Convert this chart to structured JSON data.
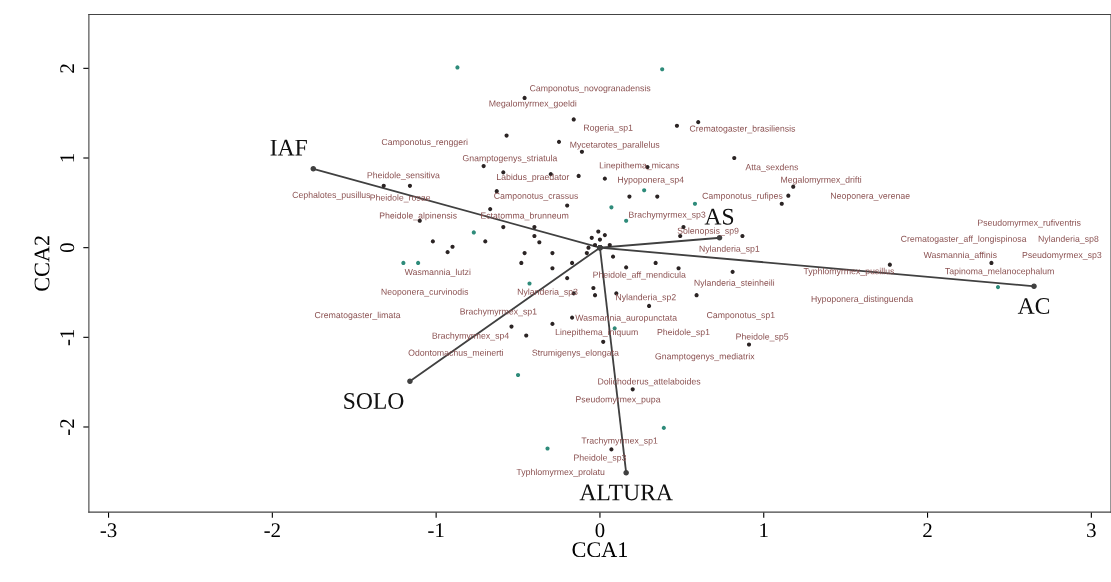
{
  "chart_data": {
    "type": "scatter",
    "xlabel": "CCA1",
    "ylabel": "CCA2",
    "xlim": [
      -3.12,
      3.12
    ],
    "ylim": [
      -2.95,
      2.6
    ],
    "xticks": [
      -3,
      -2,
      -1,
      0,
      1,
      2,
      3
    ],
    "yticks": [
      -2,
      -1,
      0,
      1,
      2
    ],
    "grid": false,
    "legend": false,
    "marker": "circle",
    "series": [
      {
        "color": "#2b2424",
        "x": [
          -0.46,
          -0.16,
          -0.57,
          -0.25,
          -0.11,
          -0.71,
          -0.59,
          -0.3,
          -0.13,
          -1.16,
          -1.32,
          -0.63,
          -0.2,
          -0.67,
          -1.1,
          -0.59,
          -0.4,
          -0.4,
          -0.7,
          -0.37,
          -1.02,
          0.6,
          0.47,
          0.82,
          0.29,
          0.03,
          0.18,
          0.35,
          1.18,
          1.15,
          1.11,
          0.51,
          0.87,
          -0.93,
          -0.9,
          -0.48,
          -0.46,
          -0.29,
          -0.08,
          -0.29,
          -0.17,
          -0.16,
          -0.2,
          -0.04,
          0.1,
          -0.17,
          -0.54,
          -0.29,
          -0.45,
          0.02,
          0.16,
          0.08,
          0.49,
          1.77,
          0.81,
          0.34,
          0.59,
          0.3,
          0.91,
          0.48,
          -0.03,
          0.2,
          0.07,
          2.39,
          0.0,
          -0.03,
          0.03,
          -0.05,
          0.06,
          -0.01,
          -0.07
        ],
        "values": [
          1.67,
          1.43,
          1.25,
          1.18,
          1.07,
          0.91,
          0.84,
          0.82,
          0.8,
          0.69,
          0.69,
          0.63,
          0.47,
          0.43,
          0.3,
          0.23,
          0.23,
          0.13,
          0.07,
          0.06,
          0.07,
          1.4,
          1.36,
          1.0,
          0.9,
          0.77,
          0.57,
          0.57,
          0.68,
          0.58,
          0.49,
          0.23,
          0.13,
          -0.05,
          0.01,
          -0.17,
          -0.06,
          -0.06,
          -0.06,
          -0.23,
          -0.17,
          -0.51,
          -0.34,
          -0.45,
          -0.51,
          -0.78,
          -0.88,
          -0.85,
          -0.98,
          -1.05,
          -0.22,
          -0.1,
          0.13,
          -0.19,
          -0.27,
          -0.17,
          -0.53,
          -0.65,
          -1.08,
          -0.23,
          -0.53,
          -1.58,
          -2.25,
          -0.17,
          0.09,
          0.03,
          0.14,
          0.11,
          0.03,
          0.18,
          0.0
        ]
      },
      {
        "color": "#2e8b7a",
        "x": [
          -0.87,
          0.38,
          -1.2,
          -1.11,
          -0.77,
          -0.43,
          -0.5,
          -0.32,
          0.39,
          2.43,
          0.09,
          0.07,
          0.16,
          0.58,
          0.27
        ],
        "values": [
          2.01,
          1.99,
          -0.17,
          -0.17,
          0.17,
          -0.4,
          -1.42,
          -2.24,
          -2.01,
          -0.44,
          -0.9,
          0.45,
          0.3,
          0.49,
          0.64
        ]
      },
      {
        "type": "line",
        "name": "IAF",
        "color": "#404040",
        "marker": "circle",
        "x": [
          0,
          -1.75
        ],
        "values": [
          0,
          0.88
        ]
      },
      {
        "type": "line",
        "name": "SOLO",
        "color": "#404040",
        "marker": "circle",
        "x": [
          0,
          -1.16
        ],
        "values": [
          0,
          -1.49
        ]
      },
      {
        "type": "line",
        "name": "ALTURA",
        "color": "#404040",
        "marker": "circle",
        "x": [
          0,
          0.16
        ],
        "values": [
          0,
          -2.51
        ]
      },
      {
        "type": "line",
        "name": "AS",
        "color": "#404040",
        "marker": "circle",
        "x": [
          0,
          0.73
        ],
        "values": [
          0,
          0.11
        ]
      },
      {
        "type": "line",
        "name": "AC",
        "color": "#404040",
        "marker": "circle",
        "x": [
          0,
          2.65
        ],
        "values": [
          0,
          -0.43
        ]
      }
    ],
    "annotations": [
      "Camponotus_novogranadensis",
      "Megalomyrmex_goeldi",
      "Rogeria_sp1",
      "Crematogaster_brasiliensis",
      "Camponotus_renggeri",
      "Mycetarotes_parallelus",
      "Gnamptogenys_striatula",
      "Linepithema_micans",
      "Atta_sexdens",
      "Pheidole_sensitiva",
      "Labidus_praedator",
      "Hypoponera_sp4",
      "Megalomyrmex_drifti",
      "Cephalotes_pusillus",
      "Pheidole_rosae",
      "Camponotus_crassus",
      "Camponotus_rufipes",
      "Neoponera_verenae",
      "Pheidole_alpinensis",
      "Ectatomma_brunneum",
      "Brachymyrmex_sp3",
      "Solenopsis_sp9",
      "Nylanderia_sp1",
      "Pseudomyrmex_rufiventris",
      "Crematogaster_aff_longispinosa",
      "Nylanderia_sp8",
      "Wasmannia_affinis",
      "Pseudomyrmex_sp3",
      "Typhlomyrmex_pusillus",
      "Tapinoma_melanocephalum",
      "Wasmannia_lutzi",
      "Pheidole_aff_mendicula",
      "Nylanderia_steinheili",
      "Hypoponera_distinguenda",
      "Neoponera_curvinodis",
      "Nylanderia_sp3",
      "Nylanderia_sp2",
      "Crematogaster_limata",
      "Brachymyrmex_sp1",
      "Wasmannia_auropunctata",
      "Camponotus_sp1",
      "Brachymyrmex_sp4",
      "Linepithema_iniquum",
      "Pheidole_sp1",
      "Pheidole_sp5",
      "Odontomachus_meinerti",
      "Strumigenys_elongata",
      "Gnamptogenys_mediatrix",
      "Dolichoderus_attelaboides",
      "Pseudomyrmex_pupa",
      "Trachymyrmex_sp1",
      "Pheidole_sp3",
      "Typhlomyrmex_prolatu"
    ]
  }
}
